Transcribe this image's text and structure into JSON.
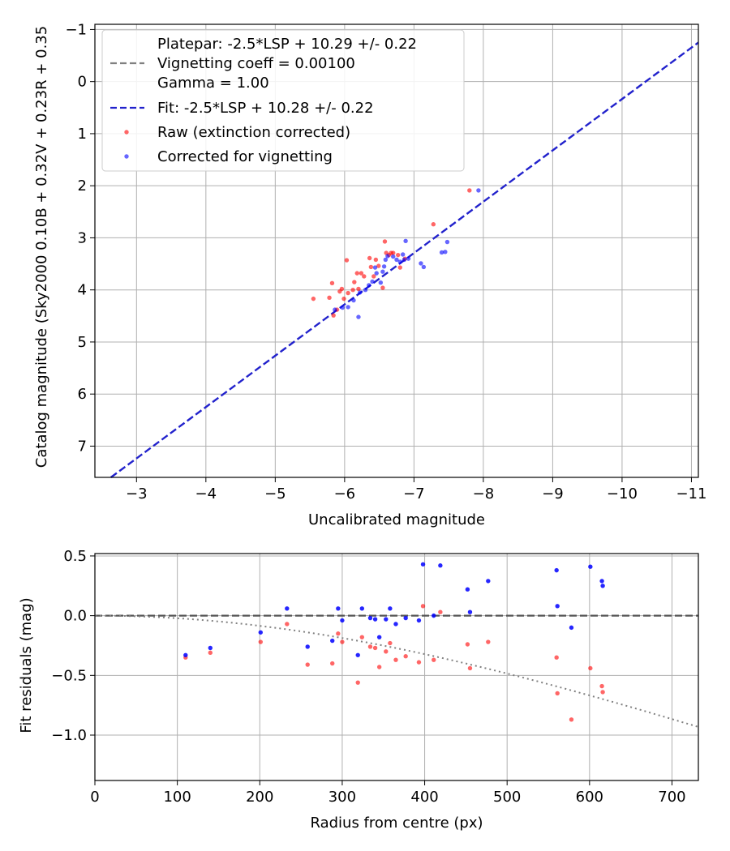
{
  "chart_data": [
    {
      "type": "scatter",
      "xlabel": "Uncalibrated magnitude",
      "ylabel": "Catalog magnitude (Sky2000 0.10B + 0.32V + 0.23R + 0.35",
      "xlim": [
        -2.4,
        -11.1
      ],
      "ylim": [
        7.6,
        -1.1
      ],
      "x_inverted": true,
      "y_inverted": true,
      "grid": true,
      "xticks": [
        -3,
        -4,
        -5,
        -6,
        -7,
        -8,
        -9,
        -10,
        -11
      ],
      "yticks": [
        -1,
        0,
        1,
        2,
        3,
        4,
        5,
        6,
        7
      ],
      "legend_position": "top-left",
      "legend": [
        {
          "text": "Platepar: -2.5*LSP + 10.29 +/- 0.22",
          "marker": "none"
        },
        {
          "text": "Vignetting coeff = 0.00100",
          "marker": "dash",
          "color": "#808080"
        },
        {
          "text": "Gamma = 1.00",
          "marker": "none"
        },
        {
          "text": "Fit: -2.5*LSP + 10.28 +/- 0.22",
          "marker": "dash",
          "color": "#2222cc"
        },
        {
          "text": "Raw (extinction corrected)",
          "marker": "dot",
          "color": "#ff0000"
        },
        {
          "text": "Corrected for vignetting",
          "marker": "dot",
          "color": "#0000ff"
        }
      ],
      "fit_line": {
        "x": [
          -2.6,
          -11.1
        ],
        "y": [
          7.63,
          -0.75
        ],
        "color": "#2222cc"
      },
      "series": [
        {
          "name": "Raw (extinction corrected)",
          "color": "#ff0000",
          "points": [
            [
              -5.55,
              4.17
            ],
            [
              -5.78,
              4.15
            ],
            [
              -5.82,
              3.87
            ],
            [
              -5.84,
              4.49
            ],
            [
              -5.89,
              4.38
            ],
            [
              -5.93,
              4.03
            ],
            [
              -5.96,
              3.98
            ],
            [
              -5.99,
              4.17
            ],
            [
              -6.03,
              3.43
            ],
            [
              -6.05,
              4.06
            ],
            [
              -6.12,
              4.0
            ],
            [
              -6.14,
              3.85
            ],
            [
              -6.18,
              3.68
            ],
            [
              -6.2,
              3.98
            ],
            [
              -6.24,
              3.68
            ],
            [
              -6.28,
              3.74
            ],
            [
              -6.36,
              3.39
            ],
            [
              -6.38,
              3.56
            ],
            [
              -6.42,
              3.74
            ],
            [
              -6.45,
              3.42
            ],
            [
              -6.49,
              3.54
            ],
            [
              -6.55,
              3.96
            ],
            [
              -6.58,
              3.07
            ],
            [
              -6.6,
              3.29
            ],
            [
              -6.64,
              3.33
            ],
            [
              -6.67,
              3.29
            ],
            [
              -6.7,
              3.29
            ],
            [
              -6.77,
              3.33
            ],
            [
              -6.8,
              3.57
            ],
            [
              -6.87,
              3.4
            ],
            [
              -7.28,
              2.74
            ],
            [
              -7.8,
              2.09
            ]
          ]
        },
        {
          "name": "Corrected for vignetting",
          "color": "#0000ff",
          "points": [
            [
              -5.86,
              4.38
            ],
            [
              -5.97,
              4.34
            ],
            [
              -6.05,
              4.33
            ],
            [
              -6.13,
              4.2
            ],
            [
              -6.2,
              4.52
            ],
            [
              -6.22,
              4.05
            ],
            [
              -6.3,
              4.0
            ],
            [
              -6.35,
              3.91
            ],
            [
              -6.4,
              3.84
            ],
            [
              -6.44,
              3.57
            ],
            [
              -6.46,
              3.68
            ],
            [
              -6.52,
              3.86
            ],
            [
              -6.55,
              3.65
            ],
            [
              -6.57,
              3.55
            ],
            [
              -6.59,
              3.42
            ],
            [
              -6.62,
              3.35
            ],
            [
              -6.7,
              3.36
            ],
            [
              -6.75,
              3.42
            ],
            [
              -6.8,
              3.46
            ],
            [
              -6.84,
              3.32
            ],
            [
              -6.86,
              3.42
            ],
            [
              -6.88,
              3.06
            ],
            [
              -6.92,
              3.4
            ],
            [
              -7.1,
              3.49
            ],
            [
              -7.14,
              3.56
            ],
            [
              -7.4,
              3.28
            ],
            [
              -7.45,
              3.27
            ],
            [
              -7.48,
              3.08
            ],
            [
              -7.93,
              2.09
            ]
          ]
        }
      ]
    },
    {
      "type": "scatter",
      "xlabel": "Radius from centre (px)",
      "ylabel": "Fit residuals (mag)",
      "xlim": [
        0,
        732
      ],
      "ylim": [
        -1.38,
        0.52
      ],
      "grid": true,
      "xticks": [
        0,
        100,
        200,
        300,
        400,
        500,
        600,
        700
      ],
      "yticks": [
        -1.0,
        -0.5,
        0.0,
        0.5
      ],
      "ytick_labels": [
        "−1.0",
        "−0.5",
        "0.0",
        "0.5"
      ],
      "zero_line": {
        "y": 0.0,
        "color": "#555555"
      },
      "vignetting_curve": {
        "coeff": 0.001,
        "color": "#808080",
        "style": "dotted"
      },
      "series": [
        {
          "name": "Raw (extinction corrected)",
          "color": "#ff0000",
          "points": [
            [
              110,
              -0.35
            ],
            [
              140,
              -0.31
            ],
            [
              201,
              -0.22
            ],
            [
              233,
              -0.07
            ],
            [
              258,
              -0.41
            ],
            [
              288,
              -0.4
            ],
            [
              295,
              -0.15
            ],
            [
              300,
              -0.22
            ],
            [
              319,
              -0.56
            ],
            [
              324,
              -0.18
            ],
            [
              334,
              -0.26
            ],
            [
              340,
              -0.27
            ],
            [
              345,
              -0.43
            ],
            [
              353,
              -0.3
            ],
            [
              358,
              -0.23
            ],
            [
              365,
              -0.37
            ],
            [
              377,
              -0.34
            ],
            [
              393,
              -0.39
            ],
            [
              398,
              0.08
            ],
            [
              411,
              -0.37
            ],
            [
              419,
              0.03
            ],
            [
              452,
              -0.24
            ],
            [
              455,
              -0.44
            ],
            [
              477,
              -0.22
            ],
            [
              560,
              -0.35
            ],
            [
              561,
              -0.65
            ],
            [
              578,
              -0.87
            ],
            [
              601,
              -0.44
            ],
            [
              615,
              -0.59
            ],
            [
              616,
              -0.64
            ]
          ]
        },
        {
          "name": "Corrected for vignetting",
          "color": "#0000ff",
          "points": [
            [
              110,
              -0.33
            ],
            [
              140,
              -0.27
            ],
            [
              201,
              -0.14
            ],
            [
              233,
              0.06
            ],
            [
              258,
              -0.26
            ],
            [
              288,
              -0.21
            ],
            [
              295,
              0.06
            ],
            [
              300,
              -0.04
            ],
            [
              319,
              -0.33
            ],
            [
              324,
              0.06
            ],
            [
              334,
              -0.02
            ],
            [
              340,
              -0.03
            ],
            [
              345,
              -0.18
            ],
            [
              353,
              -0.03
            ],
            [
              358,
              0.06
            ],
            [
              365,
              -0.07
            ],
            [
              377,
              -0.02
            ],
            [
              393,
              -0.04
            ],
            [
              398,
              0.43
            ],
            [
              411,
              0.0
            ],
            [
              419,
              0.42
            ],
            [
              452,
              0.22
            ],
            [
              455,
              0.03
            ],
            [
              477,
              0.29
            ],
            [
              560,
              0.38
            ],
            [
              561,
              0.08
            ],
            [
              578,
              -0.1
            ],
            [
              601,
              0.41
            ],
            [
              615,
              0.29
            ],
            [
              616,
              0.25
            ]
          ]
        }
      ]
    }
  ]
}
